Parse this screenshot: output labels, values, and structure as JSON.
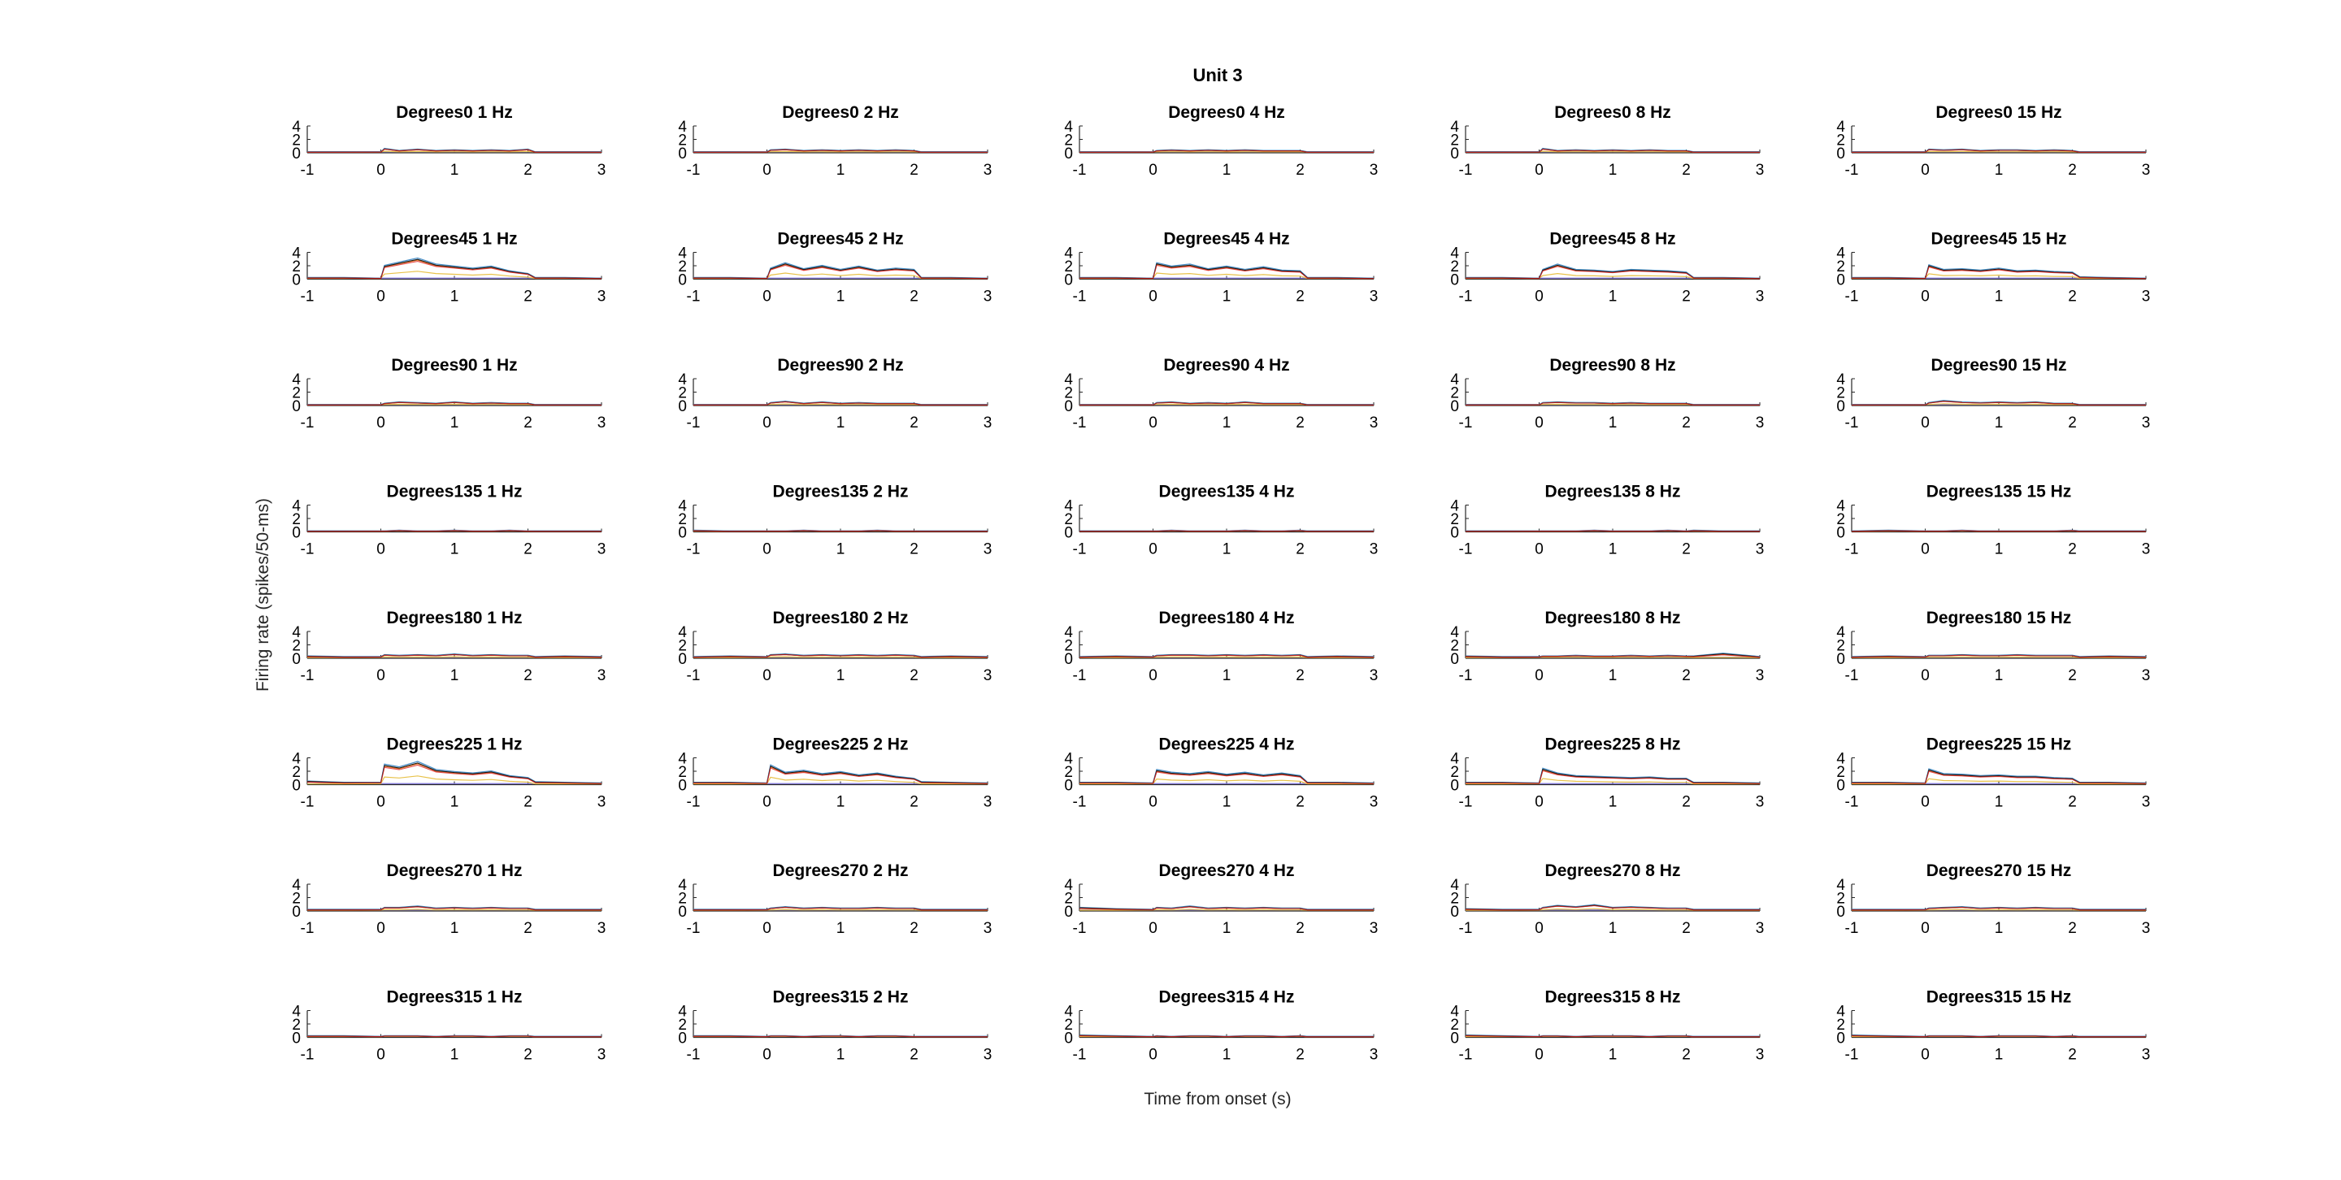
{
  "figure": {
    "title": "Unit 3",
    "xlabel": "Time from onset (s)",
    "ylabel": "Firing rate (spikes/50-ms)"
  },
  "colors": {
    "axis": "#262626",
    "series": [
      "#4a90c8",
      "#e8731a",
      "#e8c24a",
      "#1a1a1a",
      "#dd2222"
    ]
  },
  "chart_data": {
    "type": "line",
    "grid": false,
    "xlim": [
      -1,
      3
    ],
    "ylim": [
      0,
      4
    ],
    "xticks": [
      "-1",
      "0",
      "1",
      "2",
      "3"
    ],
    "yticks": [
      "0",
      "2",
      "4"
    ],
    "rows": [
      "Degrees0",
      "Degrees45",
      "Degrees90",
      "Degrees135",
      "Degrees180",
      "Degrees225",
      "Degrees270",
      "Degrees315"
    ],
    "cols": [
      "1 Hz",
      "2 Hz",
      "4 Hz",
      "8 Hz",
      "15 Hz"
    ],
    "time_s": [
      -1.0,
      -0.5,
      0.0,
      0.05,
      0.25,
      0.5,
      0.75,
      1.0,
      1.25,
      1.5,
      1.75,
      2.0,
      2.1,
      2.5,
      3.0
    ],
    "panels": [
      {
        "title": "Degrees0 1 Hz",
        "rate": [
          0.1,
          0.1,
          0.1,
          0.6,
          0.3,
          0.5,
          0.3,
          0.4,
          0.3,
          0.4,
          0.3,
          0.5,
          0.1,
          0.1,
          0.1
        ]
      },
      {
        "title": "Degrees0 2 Hz",
        "rate": [
          0.1,
          0.1,
          0.1,
          0.4,
          0.5,
          0.3,
          0.4,
          0.3,
          0.4,
          0.3,
          0.4,
          0.3,
          0.1,
          0.1,
          0.1
        ]
      },
      {
        "title": "Degrees0 4 Hz",
        "rate": [
          0.1,
          0.1,
          0.1,
          0.3,
          0.4,
          0.3,
          0.4,
          0.3,
          0.4,
          0.3,
          0.3,
          0.3,
          0.1,
          0.1,
          0.1
        ]
      },
      {
        "title": "Degrees0 8 Hz",
        "rate": [
          0.1,
          0.1,
          0.1,
          0.6,
          0.3,
          0.4,
          0.3,
          0.4,
          0.3,
          0.4,
          0.3,
          0.3,
          0.1,
          0.1,
          0.1
        ]
      },
      {
        "title": "Degrees0 15 Hz",
        "rate": [
          0.1,
          0.1,
          0.1,
          0.5,
          0.4,
          0.5,
          0.3,
          0.4,
          0.4,
          0.3,
          0.4,
          0.3,
          0.1,
          0.1,
          0.1
        ]
      },
      {
        "title": "Degrees45 1 Hz",
        "rate": [
          0.2,
          0.2,
          0.1,
          2.0,
          2.5,
          3.1,
          2.2,
          1.9,
          1.6,
          1.9,
          1.2,
          0.8,
          0.2,
          0.2,
          0.1
        ]
      },
      {
        "title": "Degrees45 2 Hz",
        "rate": [
          0.2,
          0.2,
          0.1,
          1.6,
          2.4,
          1.5,
          2.0,
          1.4,
          1.9,
          1.3,
          1.6,
          1.4,
          0.2,
          0.2,
          0.1
        ]
      },
      {
        "title": "Degrees45 4 Hz",
        "rate": [
          0.2,
          0.2,
          0.1,
          2.4,
          1.9,
          2.2,
          1.5,
          1.9,
          1.4,
          1.8,
          1.3,
          1.2,
          0.2,
          0.2,
          0.1
        ]
      },
      {
        "title": "Degrees45 8 Hz",
        "rate": [
          0.2,
          0.2,
          0.1,
          1.4,
          2.2,
          1.4,
          1.3,
          1.1,
          1.4,
          1.3,
          1.2,
          1.0,
          0.2,
          0.2,
          0.1
        ]
      },
      {
        "title": "Degrees45 15 Hz",
        "rate": [
          0.2,
          0.2,
          0.1,
          2.1,
          1.4,
          1.5,
          1.3,
          1.6,
          1.2,
          1.3,
          1.1,
          1.0,
          0.3,
          0.2,
          0.1
        ]
      },
      {
        "title": "Degrees90 1 Hz",
        "rate": [
          0.1,
          0.1,
          0.1,
          0.3,
          0.5,
          0.4,
          0.3,
          0.5,
          0.3,
          0.4,
          0.3,
          0.3,
          0.1,
          0.1,
          0.1
        ]
      },
      {
        "title": "Degrees90 2 Hz",
        "rate": [
          0.1,
          0.1,
          0.1,
          0.4,
          0.6,
          0.3,
          0.5,
          0.3,
          0.4,
          0.3,
          0.3,
          0.3,
          0.1,
          0.1,
          0.1
        ]
      },
      {
        "title": "Degrees90 4 Hz",
        "rate": [
          0.1,
          0.1,
          0.1,
          0.4,
          0.5,
          0.3,
          0.4,
          0.3,
          0.5,
          0.3,
          0.3,
          0.3,
          0.1,
          0.1,
          0.1
        ]
      },
      {
        "title": "Degrees90 8 Hz",
        "rate": [
          0.1,
          0.1,
          0.1,
          0.4,
          0.5,
          0.4,
          0.4,
          0.3,
          0.4,
          0.3,
          0.3,
          0.3,
          0.1,
          0.1,
          0.1
        ]
      },
      {
        "title": "Degrees90 15 Hz",
        "rate": [
          0.1,
          0.1,
          0.1,
          0.4,
          0.7,
          0.5,
          0.4,
          0.5,
          0.4,
          0.5,
          0.3,
          0.3,
          0.1,
          0.1,
          0.1
        ]
      },
      {
        "title": "Degrees135 1 Hz",
        "rate": [
          0.1,
          0.1,
          0.1,
          0.1,
          0.2,
          0.1,
          0.1,
          0.2,
          0.1,
          0.1,
          0.2,
          0.1,
          0.1,
          0.1,
          0.1
        ]
      },
      {
        "title": "Degrees135 2 Hz",
        "rate": [
          0.2,
          0.1,
          0.1,
          0.1,
          0.1,
          0.2,
          0.1,
          0.1,
          0.1,
          0.2,
          0.1,
          0.1,
          0.1,
          0.1,
          0.1
        ]
      },
      {
        "title": "Degrees135 4 Hz",
        "rate": [
          0.1,
          0.1,
          0.1,
          0.1,
          0.2,
          0.1,
          0.1,
          0.1,
          0.2,
          0.1,
          0.1,
          0.2,
          0.1,
          0.1,
          0.1
        ]
      },
      {
        "title": "Degrees135 8 Hz",
        "rate": [
          0.1,
          0.1,
          0.1,
          0.1,
          0.1,
          0.1,
          0.2,
          0.1,
          0.1,
          0.1,
          0.2,
          0.1,
          0.2,
          0.1,
          0.1
        ]
      },
      {
        "title": "Degrees135 15 Hz",
        "rate": [
          0.1,
          0.2,
          0.1,
          0.1,
          0.1,
          0.2,
          0.1,
          0.1,
          0.1,
          0.1,
          0.1,
          0.2,
          0.1,
          0.1,
          0.1
        ]
      },
      {
        "title": "Degrees180 1 Hz",
        "rate": [
          0.3,
          0.2,
          0.2,
          0.5,
          0.4,
          0.5,
          0.4,
          0.6,
          0.4,
          0.5,
          0.4,
          0.4,
          0.2,
          0.3,
          0.2
        ]
      },
      {
        "title": "Degrees180 2 Hz",
        "rate": [
          0.2,
          0.3,
          0.2,
          0.5,
          0.6,
          0.4,
          0.5,
          0.4,
          0.5,
          0.4,
          0.5,
          0.4,
          0.2,
          0.3,
          0.2
        ]
      },
      {
        "title": "Degrees180 4 Hz",
        "rate": [
          0.2,
          0.3,
          0.2,
          0.4,
          0.5,
          0.5,
          0.4,
          0.5,
          0.4,
          0.5,
          0.4,
          0.5,
          0.2,
          0.3,
          0.2
        ]
      },
      {
        "title": "Degrees180 8 Hz",
        "rate": [
          0.3,
          0.2,
          0.2,
          0.3,
          0.3,
          0.4,
          0.3,
          0.3,
          0.4,
          0.3,
          0.4,
          0.3,
          0.3,
          0.7,
          0.2
        ]
      },
      {
        "title": "Degrees180 15 Hz",
        "rate": [
          0.2,
          0.3,
          0.2,
          0.4,
          0.4,
          0.5,
          0.4,
          0.4,
          0.5,
          0.4,
          0.4,
          0.4,
          0.2,
          0.3,
          0.2
        ]
      },
      {
        "title": "Degrees225 1 Hz",
        "rate": [
          0.5,
          0.3,
          0.3,
          3.0,
          2.6,
          3.4,
          2.2,
          1.9,
          1.7,
          2.0,
          1.3,
          1.0,
          0.4,
          0.3,
          0.2
        ]
      },
      {
        "title": "Degrees225 2 Hz",
        "rate": [
          0.3,
          0.3,
          0.2,
          2.9,
          1.8,
          2.1,
          1.6,
          1.9,
          1.4,
          1.7,
          1.2,
          0.9,
          0.4,
          0.3,
          0.2
        ]
      },
      {
        "title": "Degrees225 4 Hz",
        "rate": [
          0.3,
          0.3,
          0.2,
          2.2,
          1.8,
          1.6,
          1.9,
          1.5,
          1.8,
          1.4,
          1.7,
          1.3,
          0.3,
          0.3,
          0.2
        ]
      },
      {
        "title": "Degrees225 8 Hz",
        "rate": [
          0.3,
          0.3,
          0.2,
          2.4,
          1.7,
          1.3,
          1.2,
          1.1,
          1.0,
          1.1,
          0.9,
          0.9,
          0.3,
          0.3,
          0.2
        ]
      },
      {
        "title": "Degrees225 15 Hz",
        "rate": [
          0.3,
          0.3,
          0.2,
          2.3,
          1.6,
          1.5,
          1.3,
          1.4,
          1.2,
          1.2,
          1.0,
          0.9,
          0.3,
          0.3,
          0.2
        ]
      },
      {
        "title": "Degrees270 1 Hz",
        "rate": [
          0.2,
          0.2,
          0.2,
          0.5,
          0.5,
          0.7,
          0.4,
          0.5,
          0.4,
          0.5,
          0.4,
          0.4,
          0.2,
          0.2,
          0.2
        ]
      },
      {
        "title": "Degrees270 2 Hz",
        "rate": [
          0.2,
          0.2,
          0.2,
          0.4,
          0.6,
          0.4,
          0.5,
          0.4,
          0.4,
          0.5,
          0.4,
          0.4,
          0.2,
          0.2,
          0.2
        ]
      },
      {
        "title": "Degrees270 4 Hz",
        "rate": [
          0.5,
          0.3,
          0.2,
          0.5,
          0.4,
          0.7,
          0.4,
          0.5,
          0.4,
          0.5,
          0.4,
          0.4,
          0.2,
          0.2,
          0.2
        ]
      },
      {
        "title": "Degrees270 8 Hz",
        "rate": [
          0.3,
          0.2,
          0.2,
          0.5,
          0.8,
          0.6,
          0.9,
          0.5,
          0.6,
          0.5,
          0.4,
          0.4,
          0.2,
          0.2,
          0.2
        ]
      },
      {
        "title": "Degrees270 15 Hz",
        "rate": [
          0.2,
          0.2,
          0.2,
          0.4,
          0.5,
          0.6,
          0.4,
          0.5,
          0.4,
          0.5,
          0.4,
          0.4,
          0.2,
          0.2,
          0.2
        ]
      },
      {
        "title": "Degrees315 1 Hz",
        "rate": [
          0.2,
          0.2,
          0.1,
          0.2,
          0.2,
          0.2,
          0.1,
          0.2,
          0.2,
          0.1,
          0.2,
          0.2,
          0.1,
          0.1,
          0.1
        ]
      },
      {
        "title": "Degrees315 2 Hz",
        "rate": [
          0.2,
          0.2,
          0.1,
          0.2,
          0.2,
          0.1,
          0.2,
          0.2,
          0.1,
          0.2,
          0.2,
          0.1,
          0.1,
          0.1,
          0.1
        ]
      },
      {
        "title": "Degrees315 4 Hz",
        "rate": [
          0.3,
          0.2,
          0.1,
          0.2,
          0.1,
          0.2,
          0.2,
          0.1,
          0.2,
          0.2,
          0.1,
          0.2,
          0.1,
          0.1,
          0.1
        ]
      },
      {
        "title": "Degrees315 8 Hz",
        "rate": [
          0.3,
          0.2,
          0.1,
          0.2,
          0.2,
          0.1,
          0.2,
          0.2,
          0.2,
          0.1,
          0.2,
          0.2,
          0.1,
          0.1,
          0.1
        ]
      },
      {
        "title": "Degrees315 15 Hz",
        "rate": [
          0.3,
          0.2,
          0.1,
          0.2,
          0.2,
          0.2,
          0.1,
          0.2,
          0.2,
          0.2,
          0.1,
          0.2,
          0.1,
          0.1,
          0.1
        ]
      }
    ]
  }
}
